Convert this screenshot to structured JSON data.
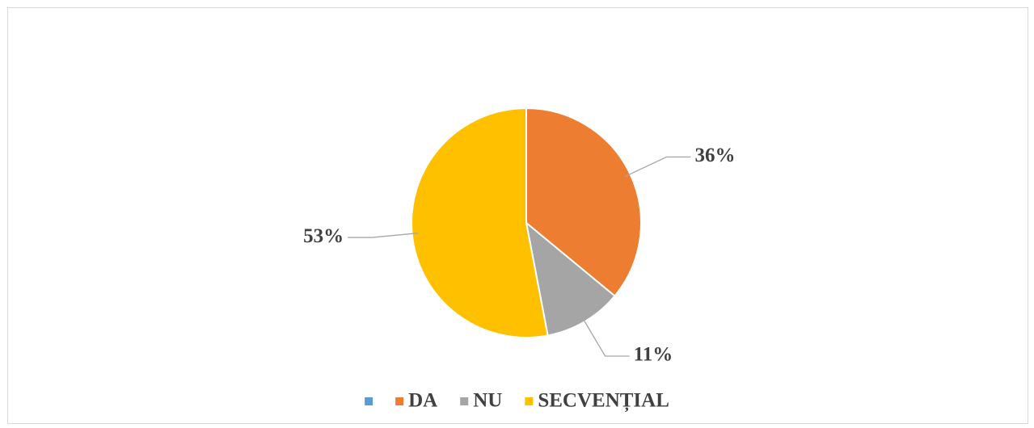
{
  "chart_data": {
    "type": "pie",
    "categories": [
      null,
      "DA",
      "NU",
      "SECVENȚIAL"
    ],
    "values": [
      0,
      36,
      11,
      53
    ],
    "value_labels": [
      null,
      "36%",
      "11%",
      "53%"
    ],
    "colors": [
      "#5b9bd5",
      "#ed7d31",
      "#a5a5a5",
      "#ffc000"
    ],
    "legend": "bottom"
  }
}
